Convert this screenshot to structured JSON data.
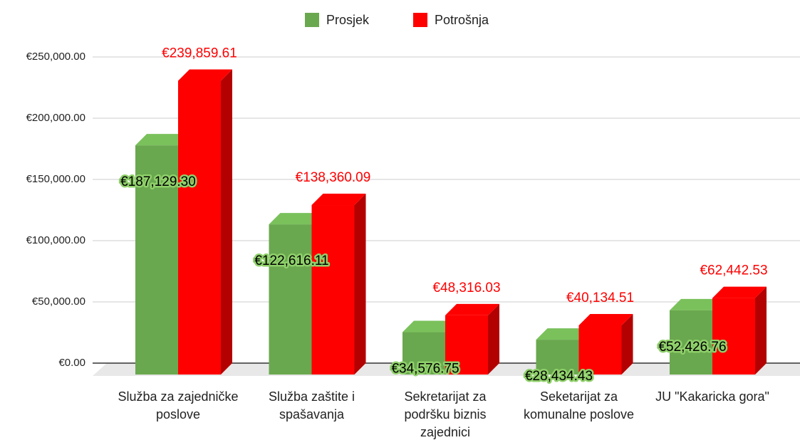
{
  "chart_data": {
    "type": "bar3d",
    "categories": [
      "Služba za zajedničke poslove",
      "Služba zaštite i spašavanja",
      "Sekretarijat za podršku biznis zajednici",
      "Seketarijat za komunalne poslove",
      "JU \"Kakaricka gora\""
    ],
    "series": [
      {
        "name": "Prosjek",
        "color": "#6aa84f",
        "values": [
          187129.3,
          122616.11,
          34576.75,
          28434.43,
          52426.76
        ],
        "value_labels": [
          "€187,129.30",
          "€122,616.11",
          "€34,576.75",
          "€28,434.43",
          "€52,426.76"
        ]
      },
      {
        "name": "Potrošnja",
        "color": "#ff0000",
        "values": [
          239859.61,
          138360.09,
          48316.03,
          40134.51,
          62442.53
        ],
        "value_labels": [
          "€239,859.61",
          "€138,360.09",
          "€48,316.03",
          "€40,134.51",
          "€62,442.53"
        ]
      }
    ],
    "ylim": [
      0,
      250000
    ],
    "yticks": [
      {
        "value": 0,
        "label": "€0.00"
      },
      {
        "value": 50000,
        "label": "€50,000.00"
      },
      {
        "value": 100000,
        "label": "€100,000.00"
      },
      {
        "value": 150000,
        "label": "€150,000.00"
      },
      {
        "value": 200000,
        "label": "€200,000.00"
      },
      {
        "value": 250000,
        "label": "€250,000.00"
      }
    ],
    "grid": true,
    "legend": "top"
  }
}
